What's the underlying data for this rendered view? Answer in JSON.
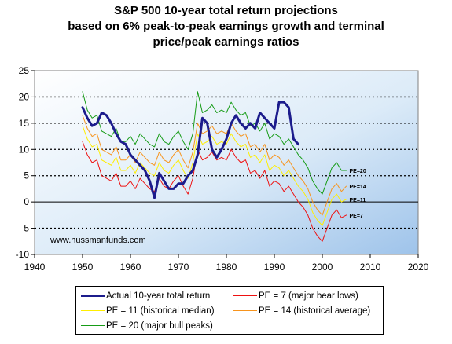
{
  "chart_data": {
    "type": "line",
    "title_lines": [
      "S&P 500 10-year total return projections",
      "based on 6% peak-to-peak earnings growth and terminal",
      "price/peak earnings ratios"
    ],
    "xlim": [
      1940,
      2020
    ],
    "ylim": [
      -10,
      25
    ],
    "x_ticks": [
      "1940",
      "1950",
      "1960",
      "1970",
      "1980",
      "1990",
      "2000",
      "2010",
      "2020"
    ],
    "y_ticks": [
      "-10",
      "-5",
      "0",
      "5",
      "10",
      "15",
      "20",
      "25"
    ],
    "grid": "dotted horizontal lines at every 5 units",
    "watermark": "www.hussmanfunds.com",
    "end_labels": [
      "PE=20",
      "PE=14",
      "PE=11",
      "PE=7"
    ],
    "legend_placement": "bottom",
    "series": [
      {
        "name": "Actual 10-year total return",
        "color": "#1c1c8c",
        "x": [
          1950,
          1951,
          1952,
          1953,
          1954,
          1955,
          1956,
          1957,
          1958,
          1959,
          1960,
          1961,
          1962,
          1963,
          1964,
          1965,
          1966,
          1967,
          1968,
          1969,
          1970,
          1971,
          1972,
          1973,
          1974,
          1975,
          1976,
          1977,
          1978,
          1979,
          1980,
          1981,
          1982,
          1983,
          1984,
          1985,
          1986,
          1987,
          1988,
          1989,
          1990,
          1991,
          1992,
          1993,
          1994,
          1995
        ],
        "values": [
          18,
          16,
          14.5,
          15,
          17,
          16.5,
          15,
          13,
          11.5,
          11,
          9,
          8,
          7,
          6,
          4,
          0.8,
          5.5,
          4,
          2.5,
          2.5,
          3.5,
          3.5,
          5,
          6,
          9,
          16,
          15,
          10,
          8.5,
          10,
          12,
          15,
          16.5,
          15,
          14,
          15,
          14,
          17,
          16,
          15,
          14,
          19,
          19,
          18,
          12,
          11
        ]
      },
      {
        "name": "PE = 7 (major bear lows)",
        "color": "#ee1111",
        "x": [
          1950,
          1951,
          1952,
          1953,
          1954,
          1955,
          1956,
          1957,
          1958,
          1959,
          1960,
          1961,
          1962,
          1963,
          1964,
          1965,
          1966,
          1967,
          1968,
          1969,
          1970,
          1971,
          1972,
          1973,
          1974,
          1975,
          1976,
          1977,
          1978,
          1979,
          1980,
          1981,
          1982,
          1983,
          1984,
          1985,
          1986,
          1987,
          1988,
          1989,
          1990,
          1991,
          1992,
          1993,
          1994,
          1995,
          1996,
          1997,
          1998,
          1999,
          2000,
          2001,
          2002,
          2003,
          2004,
          2005
        ],
        "values": [
          11.5,
          9,
          7.5,
          8,
          5,
          4.5,
          4,
          5.5,
          3,
          3,
          4,
          2.5,
          4.5,
          3.5,
          2.5,
          2,
          4.5,
          3,
          2.5,
          4,
          5,
          3,
          1.5,
          4.5,
          10,
          8,
          8.5,
          9.5,
          8,
          8.5,
          8,
          10,
          8.5,
          7.5,
          8,
          5.5,
          6,
          4.5,
          6,
          3,
          4,
          3.5,
          2,
          3,
          1.5,
          0,
          -1,
          -2.5,
          -5,
          -6.5,
          -7.5,
          -5,
          -2.5,
          -1.5,
          -3,
          -2.5
        ]
      },
      {
        "name": "PE = 11 (historical median)",
        "color": "#ffee00",
        "x": [
          1950,
          1951,
          1952,
          1953,
          1954,
          1955,
          1956,
          1957,
          1958,
          1959,
          1960,
          1961,
          1962,
          1963,
          1964,
          1965,
          1966,
          1967,
          1968,
          1969,
          1970,
          1971,
          1972,
          1973,
          1974,
          1975,
          1976,
          1977,
          1978,
          1979,
          1980,
          1981,
          1982,
          1983,
          1984,
          1985,
          1986,
          1987,
          1988,
          1989,
          1990,
          1991,
          1992,
          1993,
          1994,
          1995,
          1996,
          1997,
          1998,
          1999,
          2000,
          2001,
          2002,
          2003,
          2004,
          2005
        ],
        "values": [
          14.5,
          12,
          10.5,
          11,
          8,
          7.5,
          7,
          8.5,
          6,
          6,
          7,
          5.5,
          7.5,
          6.5,
          5.5,
          5,
          7.5,
          6,
          5.5,
          7,
          8,
          6,
          4.5,
          7.5,
          13,
          11,
          11.5,
          12.5,
          11,
          11.5,
          11,
          13,
          11.5,
          10.5,
          11,
          8.5,
          9,
          7.5,
          9,
          6,
          7,
          6.5,
          5,
          6,
          4.5,
          3,
          2,
          0.5,
          -2,
          -3.5,
          -4.5,
          -2,
          0.5,
          1.5,
          0,
          0.5
        ]
      },
      {
        "name": "PE = 14 (historical average)",
        "color": "#f7941d",
        "x": [
          1950,
          1951,
          1952,
          1953,
          1954,
          1955,
          1956,
          1957,
          1958,
          1959,
          1960,
          1961,
          1962,
          1963,
          1964,
          1965,
          1966,
          1967,
          1968,
          1969,
          1970,
          1971,
          1972,
          1973,
          1974,
          1975,
          1976,
          1977,
          1978,
          1979,
          1980,
          1981,
          1982,
          1983,
          1984,
          1985,
          1986,
          1987,
          1988,
          1989,
          1990,
          1991,
          1992,
          1993,
          1994,
          1995,
          1996,
          1997,
          1998,
          1999,
          2000,
          2001,
          2002,
          2003,
          2004,
          2005
        ],
        "values": [
          16.5,
          14,
          12.5,
          13,
          10,
          9.5,
          9,
          10.5,
          8,
          8,
          9,
          7.5,
          9.5,
          8.5,
          7.5,
          7,
          9.5,
          8,
          7.5,
          9,
          10,
          8,
          6.5,
          9.5,
          15,
          13,
          13.5,
          14.5,
          13,
          13.5,
          13,
          15,
          13.5,
          12.5,
          13,
          10.5,
          11,
          9.5,
          11,
          8,
          9,
          8.5,
          7,
          8,
          6.5,
          5,
          4,
          2.5,
          0,
          -1.5,
          -2.5,
          0,
          2.5,
          3.5,
          2,
          3
        ]
      },
      {
        "name": "PE = 20 (major bull peaks)",
        "color": "#169c16",
        "x": [
          1950,
          1951,
          1952,
          1953,
          1954,
          1955,
          1956,
          1957,
          1958,
          1959,
          1960,
          1961,
          1962,
          1963,
          1964,
          1965,
          1966,
          1967,
          1968,
          1969,
          1970,
          1971,
          1972,
          1973,
          1974,
          1975,
          1976,
          1977,
          1978,
          1979,
          1980,
          1981,
          1982,
          1983,
          1984,
          1985,
          1986,
          1987,
          1988,
          1989,
          1990,
          1991,
          1992,
          1993,
          1994,
          1995,
          1996,
          1997,
          1998,
          1999,
          2000,
          2001,
          2002,
          2003,
          2004,
          2005
        ],
        "values": [
          21,
          17.5,
          16,
          16.5,
          13.5,
          13,
          12.5,
          14,
          11.5,
          11.5,
          12.5,
          11,
          13,
          12,
          11,
          10.5,
          13,
          11.5,
          11,
          12.5,
          13.5,
          11.5,
          10,
          13,
          21,
          17,
          17.5,
          18.5,
          17,
          17.5,
          17,
          19,
          17.5,
          16.5,
          17,
          14.5,
          15,
          13.5,
          15,
          12,
          13,
          12.5,
          11,
          12,
          10.5,
          9,
          8,
          6.5,
          4,
          2.5,
          1.5,
          4,
          6.5,
          7.5,
          6,
          6
        ]
      }
    ]
  }
}
